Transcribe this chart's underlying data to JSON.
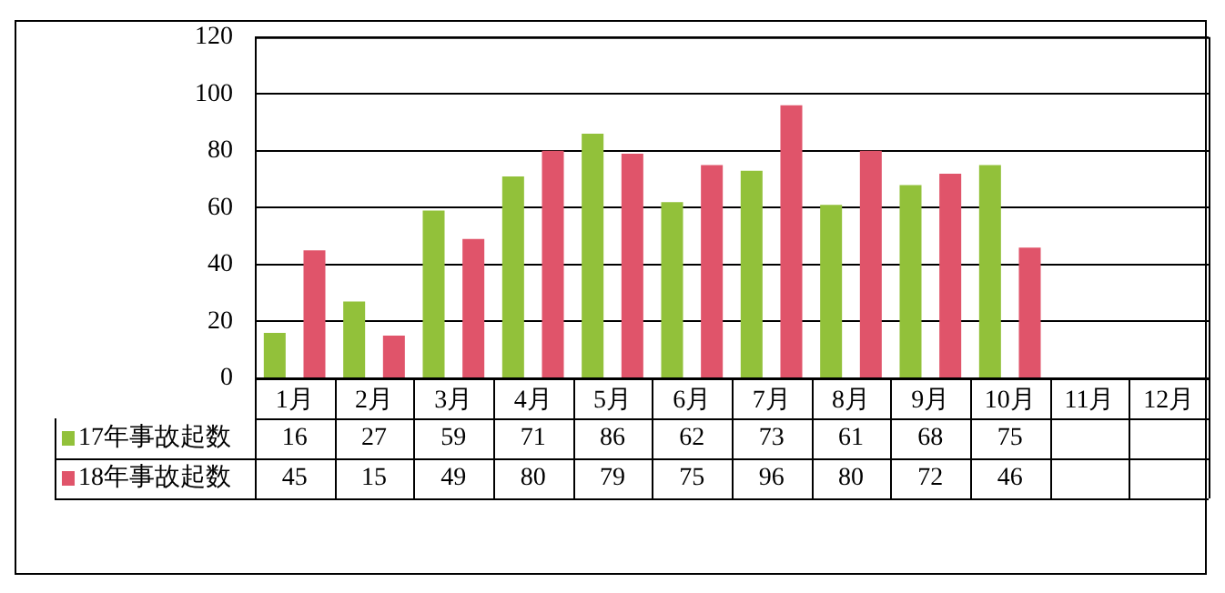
{
  "chart_data": {
    "type": "bar",
    "categories": [
      "1月",
      "2月",
      "3月",
      "4月",
      "5月",
      "6月",
      "7月",
      "8月",
      "9月",
      "10月",
      "11月",
      "12月"
    ],
    "series": [
      {
        "name": "17年事故起数",
        "color": "#92c13a",
        "values": [
          16,
          27,
          59,
          71,
          86,
          62,
          73,
          61,
          68,
          75,
          null,
          null
        ]
      },
      {
        "name": "18年事故起数",
        "color": "#e0546a",
        "values": [
          45,
          15,
          49,
          80,
          79,
          75,
          96,
          80,
          72,
          46,
          null,
          null
        ]
      }
    ],
    "ylim": [
      0,
      120
    ],
    "yticks": [
      0,
      20,
      40,
      60,
      80,
      100,
      120
    ],
    "grid": "y",
    "legend": "bottom",
    "data_labels": true
  }
}
